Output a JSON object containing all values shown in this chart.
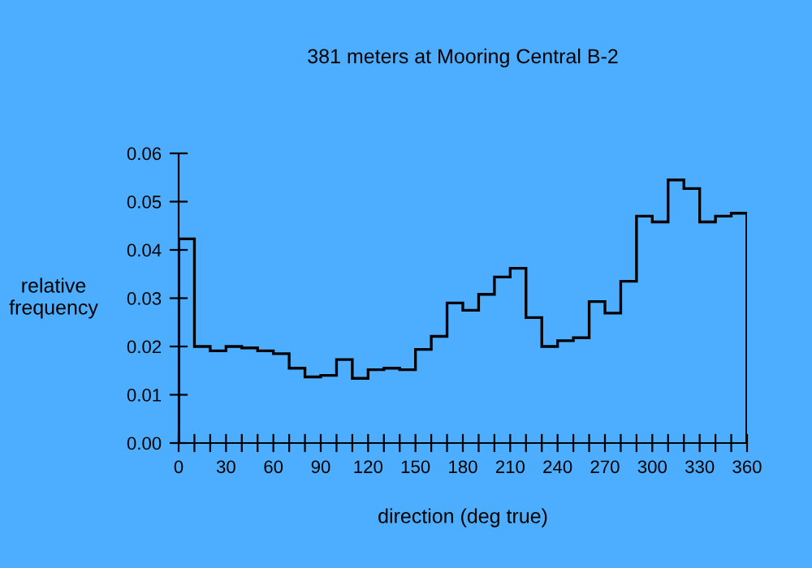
{
  "chart_data": {
    "type": "histogram",
    "title": "381 meters at Mooring Central B-2",
    "xlabel": "direction (deg true)",
    "ylabel": "relative\nfrequency",
    "bins": [
      0,
      10,
      20,
      30,
      40,
      50,
      60,
      70,
      80,
      90,
      100,
      110,
      120,
      130,
      140,
      150,
      160,
      170,
      180,
      190,
      200,
      210,
      220,
      230,
      240,
      250,
      260,
      270,
      280,
      290,
      300,
      310,
      320,
      330,
      340,
      350,
      360
    ],
    "values": [
      0.0423,
      0.02,
      0.0191,
      0.02,
      0.0197,
      0.0191,
      0.0185,
      0.0155,
      0.0137,
      0.014,
      0.0173,
      0.0134,
      0.0152,
      0.0155,
      0.0152,
      0.0194,
      0.0221,
      0.029,
      0.0275,
      0.0308,
      0.0344,
      0.0362,
      0.026,
      0.02,
      0.0212,
      0.0218,
      0.0293,
      0.0269,
      0.0335,
      0.047,
      0.0458,
      0.0545,
      0.0527,
      0.0458,
      0.047,
      0.0476
    ],
    "color": "#000000",
    "xlim": [
      0,
      360
    ],
    "xticks": [
      0,
      {
        "value": 10,
        "label": null
      },
      {
        "value": 20,
        "label": null
      },
      30,
      {
        "value": 40,
        "label": null
      },
      {
        "value": 50,
        "label": null
      },
      60,
      {
        "value": 70,
        "label": null
      },
      {
        "value": 80,
        "label": null
      },
      90,
      {
        "value": 100,
        "label": null
      },
      {
        "value": 110,
        "label": null
      },
      120,
      {
        "value": 130,
        "label": null
      },
      {
        "value": 140,
        "label": null
      },
      150,
      {
        "value": 160,
        "label": null
      },
      {
        "value": 170,
        "label": null
      },
      180,
      {
        "value": 190,
        "label": null
      },
      {
        "value": 200,
        "label": null
      },
      210,
      {
        "value": 220,
        "label": null
      },
      {
        "value": 230,
        "label": null
      },
      240,
      {
        "value": 250,
        "label": null
      },
      {
        "value": 260,
        "label": null
      },
      270,
      {
        "value": 280,
        "label": null
      },
      {
        "value": 290,
        "label": null
      },
      300,
      {
        "value": 310,
        "label": null
      },
      {
        "value": 320,
        "label": null
      },
      330,
      {
        "value": 340,
        "label": null
      },
      {
        "value": 350,
        "label": null
      },
      360
    ],
    "ylim": [
      0,
      0.06
    ],
    "yticks": [
      {
        "value": 0,
        "label": "0.00"
      },
      {
        "value": 0.01,
        "label": "0.01"
      },
      {
        "value": 0.02,
        "label": "0.02"
      },
      {
        "value": 0.03,
        "label": "0.03"
      },
      {
        "value": 0.04,
        "label": "0.04"
      },
      {
        "value": 0.05,
        "label": "0.05"
      },
      {
        "value": 0.06,
        "label": "0.06"
      }
    ],
    "grid": false
  }
}
